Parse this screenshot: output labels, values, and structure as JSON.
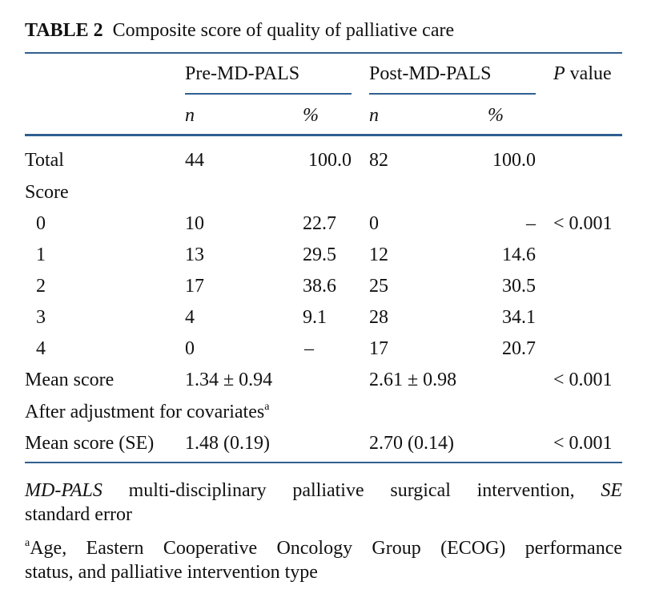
{
  "title": {
    "label": "TABLE 2",
    "text": "Composite score of quality of palliative care"
  },
  "header": {
    "pre": "Pre-MD-PALS",
    "post": "Post-MD-PALS",
    "p_italic": "P",
    "p_rest": " value",
    "n": "n",
    "pct": "%"
  },
  "rows": {
    "total": {
      "label": "Total",
      "pre_n": "44",
      "pre_pct": "100.0",
      "post_n": "82",
      "post_pct": "100.0"
    },
    "score": {
      "label": "Score"
    },
    "s0": {
      "label": "0",
      "pre_n": "10",
      "pre_pct": "22.7",
      "post_n": "0",
      "post_pct": "–",
      "p": "< 0.001"
    },
    "s1": {
      "label": "1",
      "pre_n": "13",
      "pre_pct": "29.5",
      "post_n": "12",
      "post_pct": "14.6"
    },
    "s2": {
      "label": "2",
      "pre_n": "17",
      "pre_pct": "38.6",
      "post_n": "25",
      "post_pct": "30.5"
    },
    "s3": {
      "label": "3",
      "pre_n": "4",
      "pre_pct": "9.1",
      "post_n": "28",
      "post_pct": "34.1"
    },
    "s4": {
      "label": "4",
      "pre_n": "0",
      "pre_pct": "–",
      "post_n": "17",
      "post_pct": "20.7"
    },
    "mean": {
      "label": "Mean score",
      "pre": "1.34 ± 0.94",
      "post": "2.61 ± 0.98",
      "p": "< 0.001"
    },
    "adj": {
      "label": "After adjustment for covariates",
      "sup": "a"
    },
    "mean_se": {
      "label": "Mean score (SE)",
      "pre": "1.48 (0.19)",
      "post": "2.70 (0.14)",
      "p": "< 0.001"
    }
  },
  "footnotes": {
    "abbr_1_term": "MD-PALS",
    "abbr_1_text": " multi-disciplinary palliative surgical intervention, ",
    "abbr_2_term": "SE",
    "abbr_2_text": "standard error",
    "a_sup": "a",
    "a_line1": "Age, Eastern Cooperative Oncology Group (ECOG) performance",
    "a_line2": "status, and palliative intervention type"
  },
  "colors": {
    "rule": "#2f5f8f",
    "text": "#111111"
  }
}
